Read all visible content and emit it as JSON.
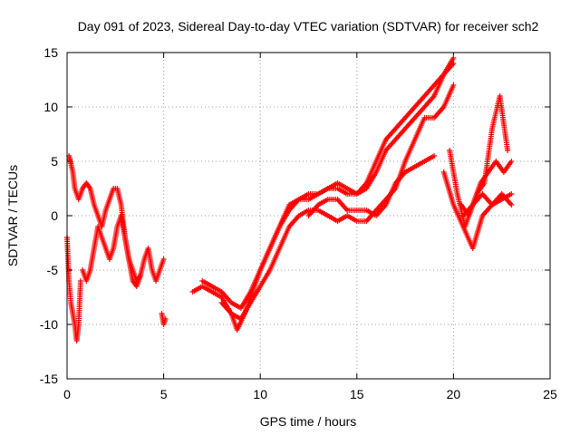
{
  "chart_data": {
    "type": "scatter",
    "title": "Day 091 of 2023, Sidereal Day-to-day VTEC variation (SDTVAR) for receiver sch2",
    "xlabel": "GPS time / hours",
    "ylabel": "SDTVAR / TECUs",
    "xlim": [
      0,
      25
    ],
    "ylim": [
      -15,
      15
    ],
    "xticks": [
      "0",
      "5",
      "10",
      "15",
      "20",
      "25"
    ],
    "yticks": [
      "-15",
      "-10",
      "-5",
      "0",
      "5",
      "10",
      "15"
    ],
    "grid": true,
    "marker": "+",
    "color": "#ff0000",
    "series": [
      {
        "name": "sdtvar",
        "traces": [
          {
            "x": [
              0.0,
              0.1,
              0.2,
              0.3,
              0.4,
              0.5,
              0.6,
              0.7
            ],
            "y": [
              -2,
              -6,
              -8,
              -9,
              -10,
              -11.5,
              -10,
              -6
            ]
          },
          {
            "x": [
              0.1,
              0.15,
              0.2,
              0.3,
              0.4,
              0.5,
              0.6,
              0.8,
              1.0,
              1.2,
              1.4,
              1.6,
              1.8,
              2.0,
              2.2,
              2.4,
              2.6,
              2.8,
              3.0,
              3.2,
              3.4,
              3.6,
              3.8,
              4.0,
              4.2,
              4.4,
              4.6,
              4.8,
              5.0
            ],
            "y": [
              5.5,
              5.2,
              4.8,
              4,
              2.5,
              2,
              1.5,
              2.5,
              3,
              2.5,
              1,
              0,
              -1,
              0.5,
              1.5,
              2.5,
              2.5,
              1,
              -2,
              -4,
              -5,
              -6,
              -5.5,
              -4,
              -3,
              -5,
              -6,
              -5,
              -4
            ]
          },
          {
            "x": [
              0.8,
              1.0,
              1.2,
              1.4,
              1.6,
              1.8,
              2.0,
              2.2,
              2.4,
              2.6,
              2.8,
              3.0,
              3.2,
              3.4,
              3.6,
              3.8
            ],
            "y": [
              -5,
              -6,
              -5,
              -3,
              -1,
              -2,
              -3,
              -4,
              -3,
              -1,
              0,
              -2,
              -4,
              -6,
              -6.5,
              -5.5
            ]
          },
          {
            "x": [
              4.9,
              5.0,
              5.1
            ],
            "y": [
              -9,
              -10,
              -9.5
            ]
          },
          {
            "x": [
              6.5,
              7.0,
              7.5,
              8.0,
              8.5,
              8.8,
              9.2,
              9.6,
              10.0,
              10.5,
              11.0,
              11.5,
              12.0,
              12.5,
              13.0,
              13.5,
              14.0,
              14.5,
              15.0,
              15.5,
              16.0,
              16.5,
              17.0,
              17.5,
              18.0,
              18.5,
              19.0,
              19.5,
              20.0
            ],
            "y": [
              -7,
              -6.5,
              -7,
              -7.5,
              -9,
              -10.5,
              -9,
              -7,
              -5,
              -3,
              -1,
              0.5,
              1.5,
              2,
              2,
              2.5,
              2.5,
              2,
              2,
              2.5,
              4,
              6,
              7,
              8,
              9,
              10,
              11,
              13,
              14.5
            ]
          },
          {
            "x": [
              7.0,
              7.5,
              8.0,
              8.5,
              9.0,
              9.5,
              10.0,
              10.5,
              11.0,
              11.5,
              12.0,
              12.5,
              13.0,
              13.5,
              14.0,
              14.5,
              15.0,
              15.5,
              16.0,
              16.5,
              17.0,
              17.5,
              18.0,
              18.5,
              19.0,
              19.5,
              20.0
            ],
            "y": [
              -6,
              -6.5,
              -7,
              -8,
              -8.5,
              -7,
              -5,
              -3,
              -1,
              1,
              1.5,
              1.5,
              2,
              2.5,
              3,
              2.5,
              2,
              3,
              5,
              7,
              8,
              9,
              10,
              11,
              12,
              13,
              14
            ]
          },
          {
            "x": [
              8.0,
              8.5,
              9.0,
              9.5,
              10.0,
              10.5,
              11.0,
              11.5,
              12.0,
              12.5,
              13.0,
              13.5,
              14.0,
              14.5,
              15.0,
              15.5,
              16.0,
              16.5,
              17.0,
              17.5,
              18.0,
              18.5,
              19.0,
              19.5,
              20.0
            ],
            "y": [
              -8,
              -9,
              -9.5,
              -8,
              -6.5,
              -5,
              -3,
              -1,
              0,
              0.5,
              0.5,
              0,
              -0.5,
              0,
              -0.5,
              -0.5,
              0.5,
              1.5,
              2.5,
              5,
              7,
              9,
              9,
              10,
              12
            ]
          },
          {
            "x": [
              12.5,
              13.0,
              13.5,
              14.0,
              14.5,
              15.0,
              15.5,
              16.0,
              16.5,
              17.0,
              17.5,
              18.0,
              18.5,
              19.0
            ],
            "y": [
              0,
              1,
              1.5,
              1.5,
              0.5,
              0.5,
              0.5,
              0,
              1,
              3,
              4,
              4.5,
              5,
              5.5
            ]
          },
          {
            "x": [
              19.5,
              20.0,
              20.5,
              21.0,
              21.5,
              22.0,
              22.5,
              23.0
            ],
            "y": [
              4,
              1,
              -1,
              -3,
              0,
              1,
              2,
              1
            ]
          },
          {
            "x": [
              19.8,
              20.2,
              20.6,
              21.0,
              21.4,
              21.8,
              22.2,
              22.6,
              23.0
            ],
            "y": [
              6,
              2,
              -1,
              1,
              3,
              4,
              5,
              4,
              5
            ]
          },
          {
            "x": [
              20.4,
              20.8,
              21.2,
              21.6,
              22.0,
              22.4,
              22.8
            ],
            "y": [
              1,
              0,
              2,
              3,
              8,
              11,
              6
            ]
          },
          {
            "x": [
              20.5,
              21.0,
              21.5,
              22.0,
              22.5,
              23.0
            ],
            "y": [
              0,
              1,
              2,
              1,
              1.5,
              2
            ]
          }
        ]
      }
    ]
  }
}
